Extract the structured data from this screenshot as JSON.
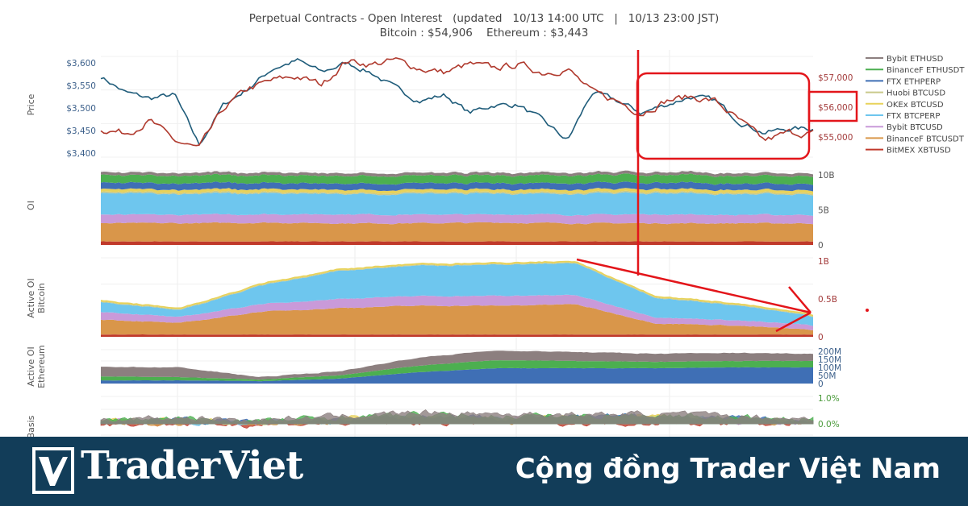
{
  "title": {
    "line1": "Perpetual Contracts - Open Interest   (updated   10/13 14:00 UTC   |   10/13 23:00 JST)",
    "line2": "Bitcoin : $54,906    Ethereum : $3,443"
  },
  "banner": {
    "brand": "TraderViet",
    "slogan": "Cộng đồng Trader Việt Nam",
    "background": "#123d59"
  },
  "legend": [
    {
      "name": "Bybit ETHUSD",
      "color": "#8c7f7f"
    },
    {
      "name": "BinanceF ETHUSDT",
      "color": "#4caf50"
    },
    {
      "name": "FTX ETHPERP",
      "color": "#3f6fb5"
    },
    {
      "name": "Huobi BTCUSD",
      "color": "#c9c98a"
    },
    {
      "name": "OKEx BTCUSD",
      "color": "#e8d25a"
    },
    {
      "name": "FTX BTCPERP",
      "color": "#6ec6ee"
    },
    {
      "name": "Bybit BTCUSD",
      "color": "#c99ad9"
    },
    {
      "name": "BinanceF BTCUSDT",
      "color": "#d9964a"
    },
    {
      "name": "BitMEX XBTUSD",
      "color": "#c0392b"
    }
  ],
  "chart_data": [
    {
      "type": "line",
      "panel": "price",
      "ylabel": "Price",
      "left_axis": {
        "ticks": [
          "$3,400",
          "$3,450",
          "$3,500",
          "$3,550",
          "$3,600"
        ],
        "range": [
          3380,
          3620
        ],
        "color": "#3b5f8a"
      },
      "right_axis": {
        "ticks": [
          "$55,000",
          "$56,000",
          "$57,000"
        ],
        "range": [
          54450,
          57800
        ],
        "color": "#a33b3b"
      },
      "series": [
        {
          "name": "Ethereum",
          "axis": "left",
          "color": "#1f5c7a",
          "values": [
            3570,
            3534,
            3521,
            3529,
            3418,
            3507,
            3543,
            3588,
            3605,
            3579,
            3600,
            3579,
            3543,
            3516,
            3529,
            3489,
            3507,
            3507,
            3471,
            3427,
            3534,
            3516,
            3489,
            3507,
            3525,
            3516,
            3471,
            3445,
            3454,
            3454
          ]
        },
        {
          "name": "Bitcoin",
          "axis": "right",
          "color": "#b03a2e",
          "values": [
            55270,
            55135,
            55540,
            54865,
            54595,
            55945,
            56620,
            56890,
            57025,
            56755,
            57565,
            57430,
            57565,
            57295,
            57160,
            57430,
            57295,
            57430,
            57160,
            57295,
            56485,
            56215,
            55810,
            56215,
            56350,
            56215,
            55540,
            54865,
            55135,
            55135
          ]
        }
      ]
    },
    {
      "type": "area",
      "stacked": true,
      "panel": "oi",
      "ylabel": "OI",
      "axis": {
        "ticks": [
          "0",
          "5B",
          "10B"
        ],
        "range": [
          0,
          10.6
        ],
        "unit": "B",
        "color": "#555555"
      },
      "series": [
        {
          "name": "BitMEX XBTUSD",
          "values": [
            0.5,
            0.5,
            0.5,
            0.5,
            0.5,
            0.5,
            0.5,
            0.5,
            0.5,
            0.5
          ]
        },
        {
          "name": "BinanceF BTCUSDT",
          "values": [
            2.6,
            2.6,
            2.7,
            2.6,
            2.6,
            2.7,
            2.6,
            2.6,
            2.6,
            2.6
          ]
        },
        {
          "name": "Bybit BTCUSD",
          "values": [
            1.2,
            1.2,
            1.2,
            1.3,
            1.2,
            1.2,
            1.2,
            1.3,
            1.2,
            1.2
          ]
        },
        {
          "name": "FTX BTCPERP",
          "values": [
            3.0,
            3.0,
            3.0,
            2.9,
            3.0,
            3.0,
            3.0,
            3.0,
            3.0,
            3.0
          ]
        },
        {
          "name": "Huobi BTCUSD",
          "values": [
            0.2,
            0.2,
            0.2,
            0.2,
            0.2,
            0.2,
            0.2,
            0.2,
            0.2,
            0.2
          ]
        },
        {
          "name": "OKEx BTCUSD",
          "values": [
            0.4,
            0.4,
            0.4,
            0.4,
            0.4,
            0.4,
            0.4,
            0.4,
            0.4,
            0.4
          ]
        },
        {
          "name": "FTX ETHPERP",
          "values": [
            0.9,
            0.9,
            0.9,
            0.9,
            0.9,
            0.9,
            0.9,
            0.9,
            0.9,
            0.9
          ]
        },
        {
          "name": "BinanceF ETHUSDT",
          "values": [
            1.1,
            1.1,
            1.1,
            1.1,
            1.1,
            1.1,
            1.1,
            1.1,
            1.1,
            1.1
          ]
        },
        {
          "name": "Bybit ETHUSD",
          "values": [
            0.4,
            0.4,
            0.4,
            0.4,
            0.4,
            0.4,
            0.4,
            0.4,
            0.4,
            0.4
          ]
        }
      ]
    },
    {
      "type": "area",
      "stacked": true,
      "panel": "active-oi-bitcoin",
      "ylabel": "Active OI Bitcoin",
      "axis": {
        "ticks": [
          "0",
          "0.5B",
          "1B"
        ],
        "range": [
          0,
          1.0
        ],
        "unit": "B",
        "color": "#a33b3b"
      },
      "series": [
        {
          "name": "BitMEX XBTUSD",
          "values": [
            0.03,
            0.03,
            0.03,
            0.03,
            0.03,
            0.03,
            0.03,
            0.03,
            0.03,
            0.03
          ]
        },
        {
          "name": "BinanceF BTCUSDT",
          "values": [
            0.2,
            0.15,
            0.3,
            0.35,
            0.38,
            0.38,
            0.4,
            0.15,
            0.12,
            0.06
          ]
        },
        {
          "name": "Bybit BTCUSD",
          "values": [
            0.1,
            0.08,
            0.1,
            0.12,
            0.13,
            0.13,
            0.12,
            0.08,
            0.07,
            0.06
          ]
        },
        {
          "name": "FTX BTCPERP",
          "values": [
            0.13,
            0.09,
            0.24,
            0.37,
            0.4,
            0.41,
            0.42,
            0.26,
            0.2,
            0.12
          ]
        },
        {
          "name": "Huobi BTCUSD",
          "values": [
            0.01,
            0.01,
            0.01,
            0.01,
            0.01,
            0.01,
            0.01,
            0.01,
            0.01,
            0.01
          ]
        },
        {
          "name": "OKEx BTCUSD",
          "values": [
            0.02,
            0.02,
            0.02,
            0.02,
            0.02,
            0.02,
            0.02,
            0.02,
            0.02,
            0.02
          ]
        }
      ]
    },
    {
      "type": "area",
      "stacked": true,
      "panel": "active-oi-ethereum",
      "ylabel": "Active OI Ethereum",
      "axis": {
        "ticks": [
          "0",
          "50M",
          "100M",
          "150M",
          "200M"
        ],
        "range": [
          0,
          210
        ],
        "unit": "M",
        "color": "#3b5f8a"
      },
      "series": [
        {
          "name": "FTX ETHPERP",
          "values": [
            20,
            20,
            15,
            30,
            70,
            95,
            95,
            95,
            100,
            100
          ]
        },
        {
          "name": "BinanceF ETHUSDT",
          "values": [
            25,
            20,
            10,
            20,
            40,
            50,
            45,
            40,
            40,
            40
          ]
        },
        {
          "name": "Bybit ETHUSD",
          "values": [
            60,
            60,
            15,
            25,
            50,
            60,
            55,
            50,
            50,
            45
          ]
        }
      ]
    },
    {
      "type": "line",
      "panel": "basis",
      "ylabel": "Basis",
      "axis": {
        "ticks": [
          "0.0%",
          "1.0%"
        ],
        "range": [
          -0.5,
          1.2
        ],
        "unit": "%",
        "color": "#4a9a3a"
      },
      "series": [
        {
          "name": "Bybit ETHUSD",
          "values": [
            0.2,
            0.25,
            0.15,
            0.3,
            0.45,
            0.4,
            0.35,
            0.4,
            0.3,
            0.2
          ]
        },
        {
          "name": "BinanceF ETHUSDT",
          "values": [
            0.15,
            0.2,
            0.1,
            0.25,
            0.35,
            0.3,
            0.3,
            0.35,
            0.25,
            0.15
          ]
        },
        {
          "name": "FTX ETHPERP",
          "values": [
            0.1,
            0.15,
            0.05,
            0.2,
            0.3,
            0.25,
            0.25,
            0.3,
            0.2,
            0.1
          ]
        },
        {
          "name": "Huobi BTCUSD",
          "values": [
            0.1,
            0.1,
            0.05,
            0.15,
            0.2,
            0.2,
            0.2,
            0.25,
            0.15,
            0.1
          ]
        },
        {
          "name": "OKEx BTCUSD",
          "values": [
            0.12,
            0.12,
            0.08,
            0.18,
            0.25,
            0.22,
            0.2,
            0.25,
            0.18,
            0.1
          ]
        },
        {
          "name": "FTX BTCPERP",
          "values": [
            0.08,
            0.1,
            0.05,
            0.15,
            0.22,
            0.2,
            0.2,
            0.22,
            0.15,
            0.08
          ]
        },
        {
          "name": "Bybit BTCUSD",
          "values": [
            0.05,
            0.08,
            0.02,
            0.1,
            0.18,
            0.15,
            0.15,
            0.18,
            0.1,
            0.05
          ]
        },
        {
          "name": "BinanceF BTCUSDT",
          "values": [
            0.02,
            0.05,
            0.0,
            0.08,
            0.12,
            0.1,
            0.1,
            0.12,
            0.08,
            0.03
          ]
        },
        {
          "name": "BitMEX XBTUSD",
          "values": [
            0.0,
            0.0,
            -0.02,
            0.02,
            0.05,
            0.03,
            0.03,
            0.05,
            0.02,
            0.0
          ]
        }
      ]
    }
  ]
}
